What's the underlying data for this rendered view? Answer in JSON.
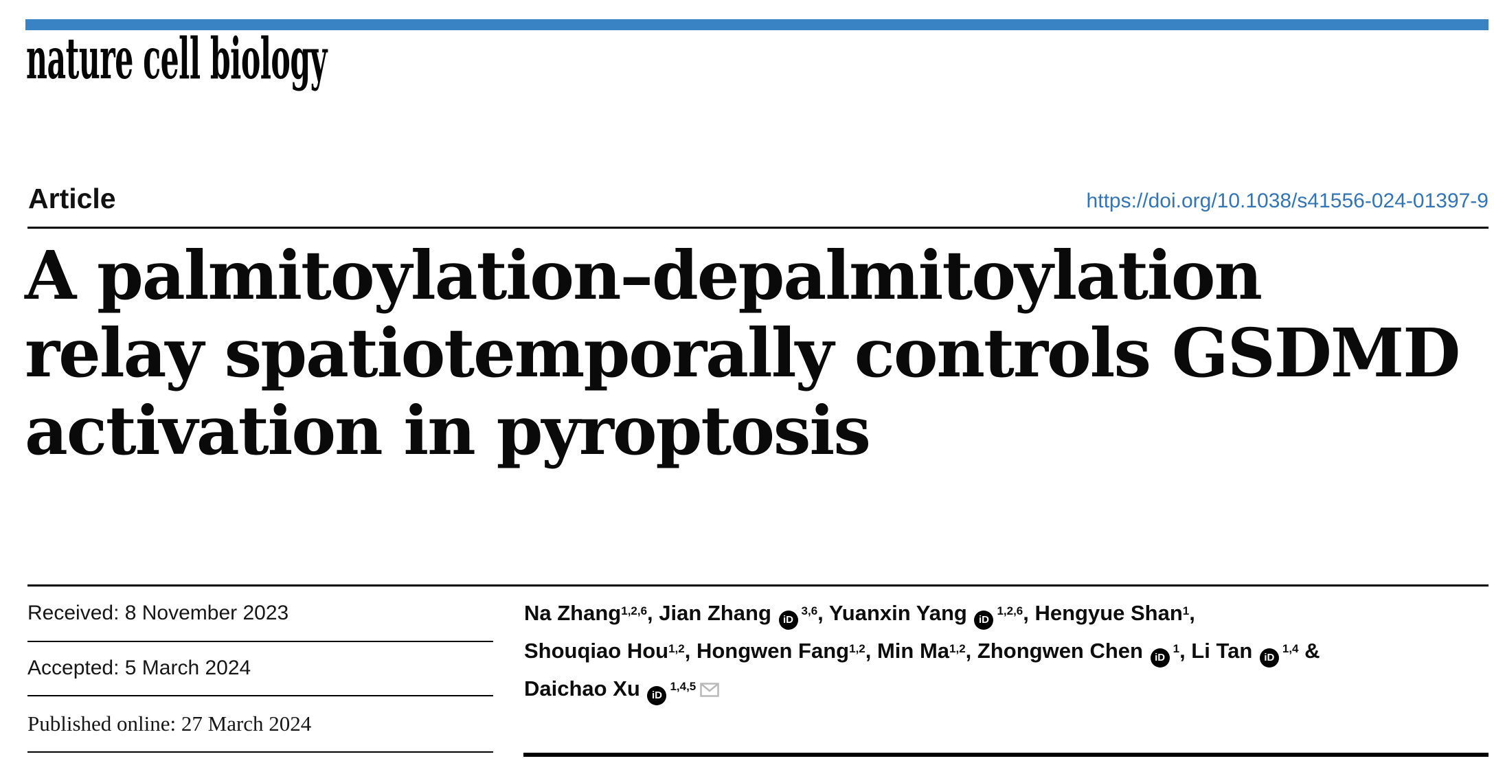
{
  "masthead": {
    "journal": "nature cell biology"
  },
  "article_header": {
    "type_label": "Article",
    "doi": "https://doi.org/10.1038/s41556-024-01397-9"
  },
  "title": {
    "lines": [
      "A palmitoylation–depalmitoylation",
      "relay spatiotemporally controls GSDMD",
      "activation in pyroptosis"
    ]
  },
  "dates": {
    "items": [
      {
        "id": "received",
        "text": "Received: 8 November 2023"
      },
      {
        "id": "accepted",
        "text": "Accepted: 5 March 2024"
      },
      {
        "id": "published",
        "text": "Published online: 27 March 2024"
      }
    ]
  },
  "authors": {
    "lines": [
      [
        {
          "t": "x",
          "v": "Na Zhang"
        },
        {
          "t": "s",
          "v": "1,2,6"
        },
        {
          "t": "x",
          "v": ", Jian Zhang "
        },
        {
          "t": "o"
        },
        {
          "t": "s",
          "v": "3,6"
        },
        {
          "t": "x",
          "v": ", Yuanxin Yang "
        },
        {
          "t": "o"
        },
        {
          "t": "s",
          "v": "1,2,6"
        },
        {
          "t": "x",
          "v": ", Hengyue Shan"
        },
        {
          "t": "s",
          "v": "1"
        },
        {
          "t": "x",
          "v": ","
        }
      ],
      [
        {
          "t": "x",
          "v": "Shouqiao Hou"
        },
        {
          "t": "s",
          "v": "1,2"
        },
        {
          "t": "x",
          "v": ", Hongwen Fang"
        },
        {
          "t": "s",
          "v": "1,2"
        },
        {
          "t": "x",
          "v": ", Min Ma"
        },
        {
          "t": "s",
          "v": "1,2"
        },
        {
          "t": "x",
          "v": ", Zhongwen Chen "
        },
        {
          "t": "o"
        },
        {
          "t": "s",
          "v": "1"
        },
        {
          "t": "x",
          "v": ", Li Tan "
        },
        {
          "t": "o"
        },
        {
          "t": "s",
          "v": "1,4"
        },
        {
          "t": "x",
          "v": " &"
        }
      ],
      [
        {
          "t": "x",
          "v": "Daichao Xu "
        },
        {
          "t": "o"
        },
        {
          "t": "s",
          "v": "1,4,5"
        },
        {
          "t": "m"
        }
      ]
    ]
  },
  "icons": {
    "orcid_glyph": "iD",
    "email": "envelope"
  },
  "colors": {
    "brand_bar": "#3982C4",
    "doi_link": "#3374B5",
    "email_icon_stroke": "#B9B9B9"
  }
}
